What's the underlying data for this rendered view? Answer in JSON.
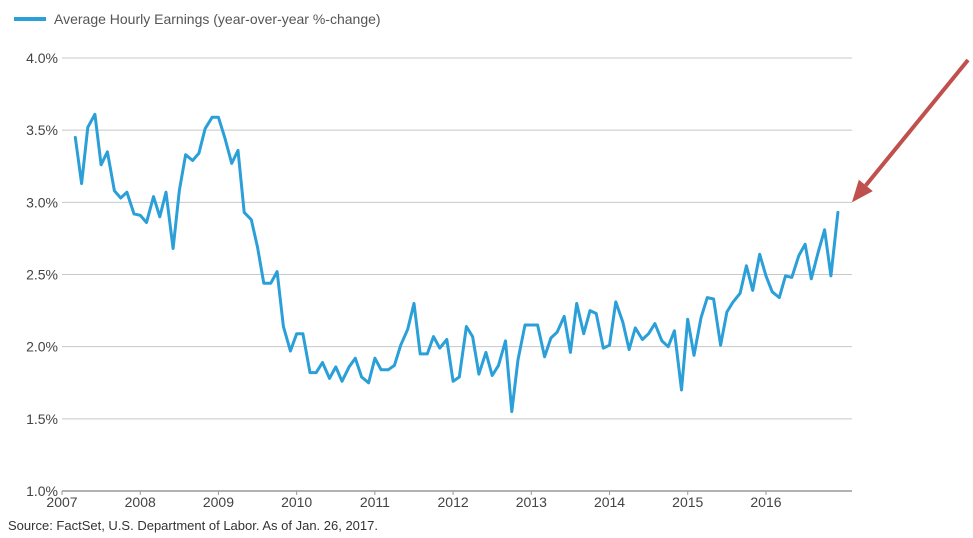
{
  "chart_data": {
    "type": "line",
    "legend_placement": "top-left",
    "grid": true,
    "series": [
      {
        "name": "Average Hourly Earnings (year-over-year %-change)",
        "color": "#2a9fd8",
        "x": [
          2007.17,
          2007.25,
          2007.33,
          2007.42,
          2007.5,
          2007.58,
          2007.67,
          2007.75,
          2007.83,
          2007.92,
          2008.0,
          2008.08,
          2008.17,
          2008.25,
          2008.33,
          2008.42,
          2008.5,
          2008.58,
          2008.67,
          2008.75,
          2008.83,
          2008.92,
          2009.0,
          2009.08,
          2009.17,
          2009.25,
          2009.33,
          2009.42,
          2009.5,
          2009.58,
          2009.67,
          2009.75,
          2009.83,
          2009.92,
          2010.0,
          2010.08,
          2010.17,
          2010.25,
          2010.33,
          2010.42,
          2010.5,
          2010.58,
          2010.67,
          2010.75,
          2010.83,
          2010.92,
          2011.0,
          2011.08,
          2011.17,
          2011.25,
          2011.33,
          2011.42,
          2011.5,
          2011.58,
          2011.67,
          2011.75,
          2011.83,
          2011.92,
          2012.0,
          2012.08,
          2012.17,
          2012.25,
          2012.33,
          2012.42,
          2012.5,
          2012.58,
          2012.67,
          2012.75,
          2012.83,
          2012.92,
          2013.0,
          2013.08,
          2013.17,
          2013.25,
          2013.33,
          2013.42,
          2013.5,
          2013.58,
          2013.67,
          2013.75,
          2013.83,
          2013.92,
          2014.0,
          2014.08,
          2014.17,
          2014.25,
          2014.33,
          2014.42,
          2014.5,
          2014.58,
          2014.67,
          2014.75,
          2014.83,
          2014.92,
          2015.0,
          2015.08,
          2015.17,
          2015.25,
          2015.33,
          2015.42,
          2015.5,
          2015.58,
          2015.67,
          2015.75,
          2015.83,
          2015.92,
          2016.0,
          2016.08,
          2016.17,
          2016.25,
          2016.33,
          2016.42,
          2016.5,
          2016.58,
          2016.67,
          2016.75,
          2016.83,
          2016.92
        ],
        "values": [
          3.45,
          3.13,
          3.52,
          3.61,
          3.26,
          3.35,
          3.08,
          3.03,
          3.07,
          2.92,
          2.91,
          2.86,
          3.04,
          2.9,
          3.07,
          2.68,
          3.08,
          3.33,
          3.29,
          3.34,
          3.51,
          3.59,
          3.59,
          3.45,
          3.27,
          3.36,
          2.93,
          2.88,
          2.69,
          2.44,
          2.44,
          2.52,
          2.14,
          1.97,
          2.09,
          2.09,
          1.82,
          1.82,
          1.89,
          1.78,
          1.86,
          1.76,
          1.86,
          1.92,
          1.79,
          1.75,
          1.92,
          1.84,
          1.84,
          1.87,
          2.01,
          2.12,
          2.3,
          1.95,
          1.95,
          2.07,
          1.99,
          2.05,
          1.76,
          1.79,
          2.14,
          2.07,
          1.81,
          1.96,
          1.8,
          1.87,
          2.04,
          1.55,
          1.91,
          2.15,
          2.15,
          2.15,
          1.93,
          2.06,
          2.1,
          2.21,
          1.96,
          2.3,
          2.09,
          2.25,
          2.23,
          1.99,
          2.01,
          2.31,
          2.17,
          1.98,
          2.13,
          2.05,
          2.09,
          2.16,
          2.04,
          2.0,
          2.11,
          1.7,
          2.19,
          1.94,
          2.2,
          2.34,
          2.33,
          2.01,
          2.24,
          2.31,
          2.37,
          2.56,
          2.39,
          2.64,
          2.49,
          2.38,
          2.34,
          2.49,
          2.48,
          2.63,
          2.71,
          2.47,
          2.66,
          2.81,
          2.49,
          2.93
        ]
      }
    ],
    "xlim": [
      2007,
      2017.1
    ],
    "ylim": [
      1.0,
      4.0
    ],
    "yticks": [
      1.0,
      1.5,
      2.0,
      2.5,
      3.0,
      3.5,
      4.0
    ],
    "ytick_labels": [
      "1.0%",
      "1.5%",
      "2.0%",
      "2.5%",
      "3.0%",
      "3.5%",
      "4.0%"
    ],
    "xticks": [
      2007,
      2008,
      2009,
      2010,
      2011,
      2012,
      2013,
      2014,
      2015,
      2016
    ],
    "xtick_labels": [
      "2007",
      "2008",
      "2009",
      "2010",
      "2011",
      "2012",
      "2013",
      "2014",
      "2015",
      "2016"
    ],
    "source": "Source: FactSet, U.S. Department of Labor. As of Jan. 26, 2017.",
    "annotation": {
      "type": "arrow",
      "points_to_last_value": true,
      "color": "#c0504d"
    }
  }
}
